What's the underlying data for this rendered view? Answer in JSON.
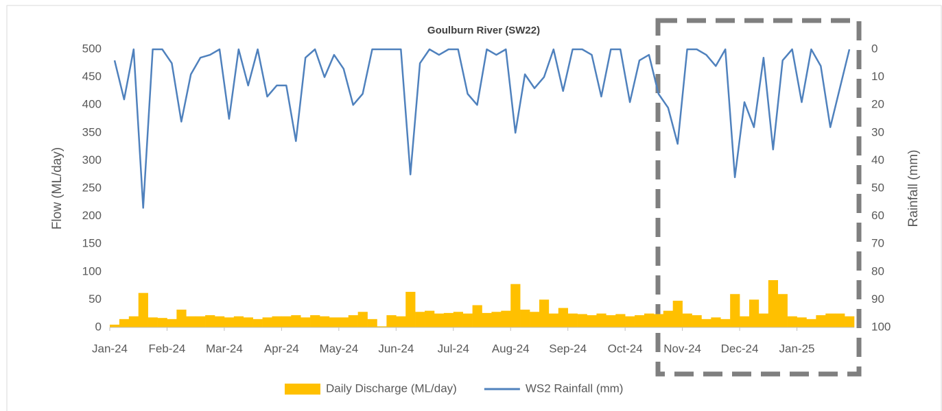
{
  "chart_data": {
    "type": "bar+line",
    "title": "Goulburn River (SW22)",
    "y_label": "Flow (ML/day)",
    "y2_label": "Rainfall (mm)",
    "categories": [
      "Jan-24",
      null,
      null,
      null,
      null,
      null,
      "Feb-24",
      null,
      null,
      null,
      null,
      null,
      "Mar-24",
      null,
      null,
      null,
      null,
      null,
      "Apr-24",
      null,
      null,
      null,
      null,
      null,
      "May-24",
      null,
      null,
      null,
      null,
      null,
      "Jun-24",
      null,
      null,
      null,
      null,
      null,
      "Jul-24",
      null,
      null,
      null,
      null,
      null,
      "Aug-24",
      null,
      null,
      null,
      null,
      null,
      "Sep-24",
      null,
      null,
      null,
      null,
      null,
      "Oct-24",
      null,
      null,
      null,
      null,
      null,
      "Nov-24",
      null,
      null,
      null,
      null,
      null,
      "Dec-24",
      null,
      null,
      null,
      null,
      null,
      "Jan-25",
      null,
      null,
      null,
      null,
      null
    ],
    "series": [
      {
        "name": "Daily Discharge (ML/day)",
        "type": "bar",
        "color": "#ffc000",
        "values": [
          5,
          15,
          20,
          62,
          18,
          17,
          15,
          32,
          20,
          20,
          22,
          20,
          18,
          20,
          18,
          15,
          18,
          20,
          20,
          22,
          18,
          22,
          20,
          18,
          18,
          22,
          28,
          15,
          2,
          22,
          20,
          64,
          28,
          30,
          25,
          26,
          28,
          25,
          40,
          26,
          28,
          30,
          78,
          32,
          28,
          50,
          25,
          35,
          25,
          24,
          22,
          25,
          22,
          24,
          20,
          22,
          25,
          24,
          30,
          48,
          25,
          22,
          15,
          18,
          15,
          60,
          20,
          50,
          25,
          85,
          60,
          20,
          18,
          15,
          22,
          25,
          25,
          20
        ]
      },
      {
        "name": "WS2 Rainfall (mm)",
        "type": "line",
        "axis": "y2",
        "color": "#4f81bd",
        "values": [
          4,
          18,
          0,
          57,
          0,
          0,
          5,
          26,
          9,
          3,
          2,
          0,
          25,
          0,
          13,
          0,
          17,
          13,
          13,
          33,
          3,
          0,
          10,
          2,
          7,
          20,
          16,
          0,
          0,
          0,
          0,
          45,
          5,
          0,
          2,
          0,
          0,
          16,
          20,
          0,
          2,
          0,
          30,
          9,
          14,
          10,
          0,
          15,
          0,
          0,
          2,
          17,
          0,
          0,
          19,
          4,
          2,
          16,
          21,
          34,
          0,
          0,
          2,
          6,
          0,
          46,
          19,
          28,
          3,
          36,
          4,
          0,
          19,
          0,
          6,
          28,
          14,
          0
        ]
      }
    ],
    "ylim": [
      0,
      500
    ],
    "yticks": [
      0,
      50,
      100,
      150,
      200,
      250,
      300,
      350,
      400,
      450,
      500
    ],
    "y2lim": [
      100,
      0
    ],
    "y2ticks": [
      0,
      10,
      20,
      30,
      40,
      50,
      60,
      70,
      80,
      90,
      100
    ],
    "grid": false,
    "legend": "bottom"
  }
}
